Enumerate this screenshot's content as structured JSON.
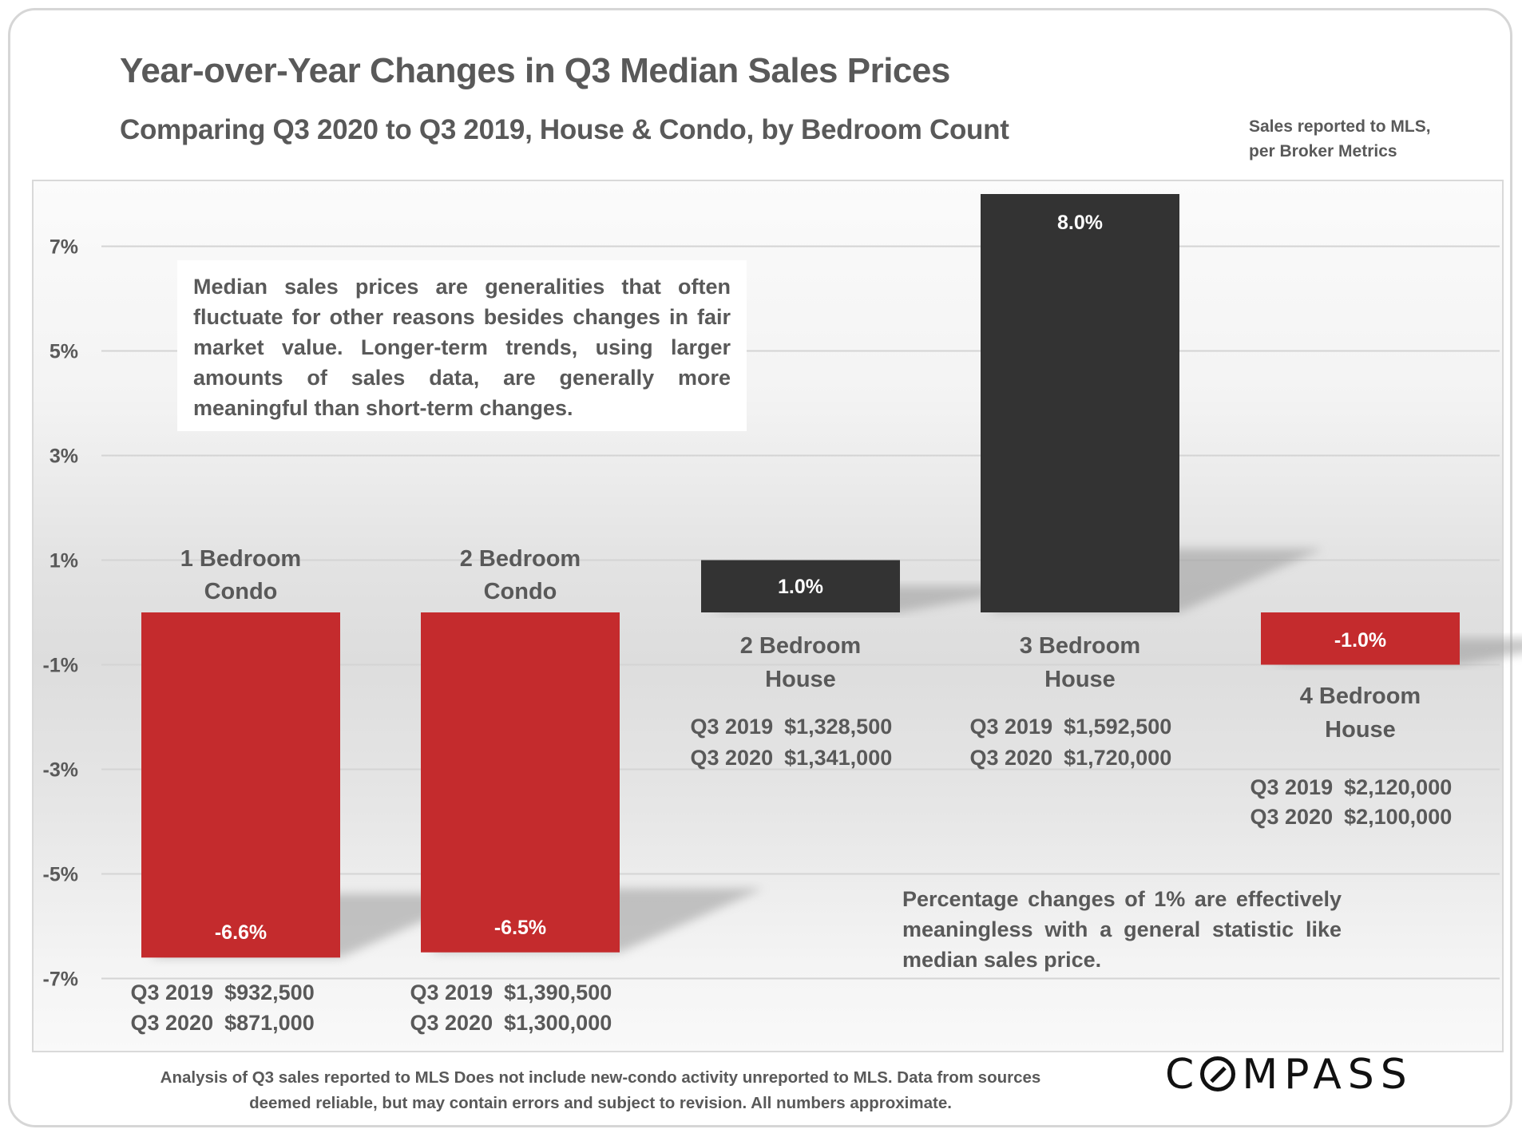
{
  "header": {
    "title": "Year-over-Year Changes in Q3 Median Sales Prices",
    "subtitle": "Comparing Q3 2020 to Q3 2019, House & Condo, by Bedroom Count",
    "source_note_line1": "Sales reported to MLS,",
    "source_note_line2": "per Broker Metrics"
  },
  "annotations": {
    "info_box": "Median sales prices are generalities that often fluctuate for other reasons besides changes in fair market value. Longer-term trends, using larger amounts of sales data, are generally more meaningful than short-term changes.",
    "bottom_note": "Percentage changes of 1% are effectively meaningless with a general statistic like median sales price."
  },
  "footer": {
    "line1": "Analysis of Q3 sales reported to MLS Does not include new-condo activity unreported to MLS. Data from sources",
    "line2": "deemed reliable, but may contain errors and subject to revision. All numbers approximate.",
    "logo_text_before": "C",
    "logo_text_after": "MPASS"
  },
  "colors": {
    "negative": "#c42b2d",
    "positive": "#333333",
    "text": "#595959",
    "grid": "#d4d4d4"
  },
  "chart_data": {
    "type": "bar",
    "title": "Year-over-Year Changes in Q3 Median Sales Prices",
    "subtitle": "Comparing Q3 2020 to Q3 2019, House & Condo, by Bedroom Count",
    "xlabel": "",
    "ylabel": "",
    "ylim": [
      -8,
      8
    ],
    "yticks": [
      7,
      5,
      3,
      1,
      -1,
      -3,
      -5,
      -7
    ],
    "ytick_labels": [
      "7%",
      "5%",
      "3%",
      "1%",
      "-1%",
      "-3%",
      "-5%",
      "-7%"
    ],
    "grid": true,
    "legend": "none",
    "categories": [
      "1 Bedroom Condo",
      "2 Bedroom Condo",
      "2 Bedroom House",
      "3 Bedroom House",
      "4 Bedroom House"
    ],
    "values": [
      -6.6,
      -6.5,
      1.0,
      8.0,
      -1.0
    ],
    "value_labels": [
      "-6.6%",
      "-6.5%",
      "1.0%",
      "8.0%",
      "-1.0%"
    ],
    "bars": [
      {
        "label_line1": "1 Bedroom",
        "label_line2": "Condo",
        "value": -6.6,
        "value_label": "-6.6%",
        "q3_2019_label": "Q3 2019",
        "q3_2019_price": "$932,500",
        "q3_2020_label": "Q3 2020",
        "q3_2020_price": "$871,000"
      },
      {
        "label_line1": "2 Bedroom",
        "label_line2": "Condo",
        "value": -6.5,
        "value_label": "-6.5%",
        "q3_2019_label": "Q3 2019",
        "q3_2019_price": "$1,390,500",
        "q3_2020_label": "Q3 2020",
        "q3_2020_price": "$1,300,000"
      },
      {
        "label_line1": "2 Bedroom",
        "label_line2": "House",
        "value": 1.0,
        "value_label": "1.0%",
        "q3_2019_label": "Q3 2019",
        "q3_2019_price": "$1,328,500",
        "q3_2020_label": "Q3 2020",
        "q3_2020_price": "$1,341,000"
      },
      {
        "label_line1": "3 Bedroom",
        "label_line2": "House",
        "value": 8.0,
        "value_label": "8.0%",
        "q3_2019_label": "Q3 2019",
        "q3_2019_price": "$1,592,500",
        "q3_2020_label": "Q3 2020",
        "q3_2020_price": "$1,720,000"
      },
      {
        "label_line1": "4 Bedroom",
        "label_line2": "House",
        "value": -1.0,
        "value_label": "-1.0%",
        "q3_2019_label": "Q3 2019",
        "q3_2019_price": "$2,120,000",
        "q3_2020_label": "Q3 2020",
        "q3_2020_price": "$2,100,000"
      }
    ]
  }
}
